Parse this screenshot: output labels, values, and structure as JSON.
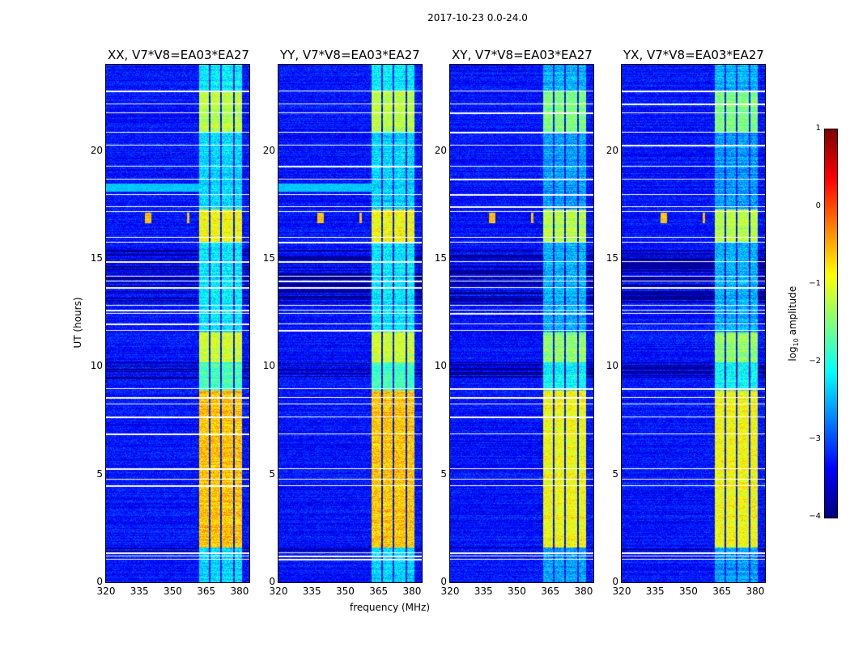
{
  "chart_data": {
    "type": "heatmap",
    "title": "2017-10-23 0.0-24.0",
    "xlabel": "frequency (MHz)",
    "ylabel": "UT (hours)",
    "xlim": [
      320,
      384.4
    ],
    "ylim": [
      0,
      24
    ],
    "xticks": [
      "320",
      "335",
      "350",
      "365",
      "380"
    ],
    "yticks": [
      "0",
      "5",
      "10",
      "15",
      "20"
    ],
    "panels": [
      {
        "title": "XX, V7*V8=EA03*EA27"
      },
      {
        "title": "YY, V7*V8=EA03*EA27"
      },
      {
        "title": "XY, V7*V8=EA03*EA27"
      },
      {
        "title": "YX, V7*V8=EA03*EA27"
      }
    ],
    "colorbar": {
      "label_main": "log",
      "label_sub": "10",
      "label_rest": " amplitude",
      "range": [
        -4,
        1
      ],
      "ticks": [
        "1",
        "0",
        "−1",
        "−2",
        "−3",
        "−4"
      ],
      "colormap": "jet"
    },
    "background_log_amplitude": -3.3,
    "rfi_band_MHz": [
      [
        362,
        366.3
      ],
      [
        367,
        371.3
      ],
      [
        372,
        377.3
      ],
      [
        378,
        381.2
      ]
    ],
    "band_log_amplitude_by_time": [
      {
        "from": 0,
        "to": 1.6,
        "value": -2.3
      },
      {
        "from": 1.6,
        "to": 8.9,
        "value": -0.6
      },
      {
        "from": 8.9,
        "to": 10.2,
        "value": -1.8
      },
      {
        "from": 10.2,
        "to": 11.6,
        "value": -1.1
      },
      {
        "from": 11.6,
        "to": 15.8,
        "value": -2.2
      },
      {
        "from": 15.8,
        "to": 17.3,
        "value": -0.9
      },
      {
        "from": 17.3,
        "to": 20.9,
        "value": -2.3
      },
      {
        "from": 20.9,
        "to": 22.8,
        "value": -1.2
      },
      {
        "from": 22.8,
        "to": 24,
        "value": -2.2
      }
    ],
    "flagged_times_h": [
      1.1,
      1.25,
      1.4,
      4.5,
      4.8,
      5.3,
      6.9,
      7.7,
      8.3,
      8.6,
      9.0,
      11.7,
      12.0,
      12.5,
      12.65,
      12.85,
      13.7,
      14.0,
      14.2,
      14.9,
      15.8,
      16.0,
      17.2,
      17.45,
      18.0,
      18.7,
      19.3,
      20.3,
      20.9,
      21.8,
      22.2,
      22.8
    ],
    "low_time_ranges_h": [
      [
        1.4,
        1.6
      ],
      [
        9.4,
        10.2
      ],
      [
        12.9,
        15.4
      ]
    ]
  }
}
